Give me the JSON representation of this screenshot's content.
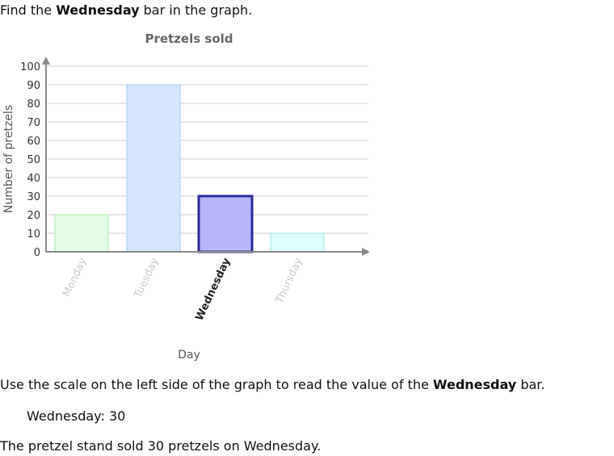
{
  "prompt": {
    "prefix": "Find the ",
    "bold": "Wednesday",
    "suffix": " bar in the graph."
  },
  "chart_data": {
    "type": "bar",
    "title": "Pretzels sold",
    "xlabel": "Day",
    "ylabel": "Number of pretzels",
    "categories": [
      "Monday",
      "Tuesday",
      "Wednesday",
      "Thursday"
    ],
    "values": [
      20,
      90,
      30,
      10
    ],
    "ylim": [
      0,
      100
    ],
    "yticks": [
      0,
      10,
      20,
      30,
      40,
      50,
      60,
      70,
      80,
      90,
      100
    ],
    "grid": true,
    "highlighted": "Wednesday",
    "colors": {
      "Monday": {
        "fill": "#e2fbe2",
        "stroke": "#a9e9a9"
      },
      "Tuesday": {
        "fill": "#d3e6fd",
        "stroke": "#9fcbf1"
      },
      "Wednesday": {
        "fill": "#b8b6f9",
        "stroke": "#2b2a99"
      },
      "Thursday": {
        "fill": "#dcfdfc",
        "stroke": "#9de8e6"
      }
    }
  },
  "instruction": {
    "prefix": "Use the scale on the left side of the graph to read the value of the ",
    "bold": "Wednesday",
    "suffix": " bar."
  },
  "answer": {
    "label": "Wednesday:",
    "value": "30"
  },
  "conclusion": "The pretzel stand sold 30 pretzels on Wednesday."
}
